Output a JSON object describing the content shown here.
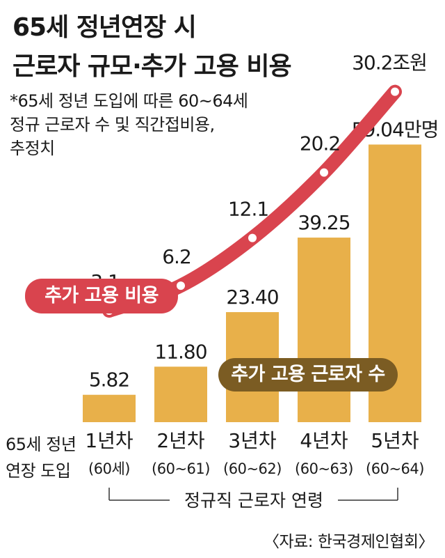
{
  "title_line1": "65세 정년연장 시",
  "title_line2": "근로자 규모·추가 고용 비용",
  "note_lines": [
    "*65세 정년 도입에 따른 60~64세",
    "정규 근로자 수 및 직간접비용,",
    "추정치"
  ],
  "legend_cost": "추가 고용 비용",
  "legend_workers": "추가 고용 근로자 수",
  "row_label_line1": "65세 정년",
  "row_label_line2": "연장 도입",
  "axis_caption": "정규직 근로자 연령",
  "source": "〈자료: 한국경제인협회〉",
  "colors": {
    "bar": "#e8b04a",
    "line": "#d9444e",
    "legend_workers_bg": "#7b5c23"
  },
  "chart_data": {
    "type": "bar",
    "categories": [
      "1년차",
      "2년차",
      "3년차",
      "4년차",
      "5년차"
    ],
    "subcategories": [
      "(60세)",
      "(60~61)",
      "(60~62)",
      "(60~63)",
      "(60~64)"
    ],
    "series": [
      {
        "name": "추가 고용 근로자 수",
        "type": "bar",
        "values": [
          5.82,
          11.8,
          23.4,
          39.25,
          59.04
        ],
        "labels": [
          "5.82",
          "11.80",
          "23.40",
          "39.25",
          "59.04만명"
        ]
      },
      {
        "name": "추가 고용 비용",
        "type": "line",
        "values": [
          3.1,
          6.2,
          12.1,
          20.2,
          30.2
        ],
        "labels": [
          "3.1",
          "6.2",
          "12.1",
          "20.2",
          "30.2조원"
        ]
      }
    ]
  }
}
